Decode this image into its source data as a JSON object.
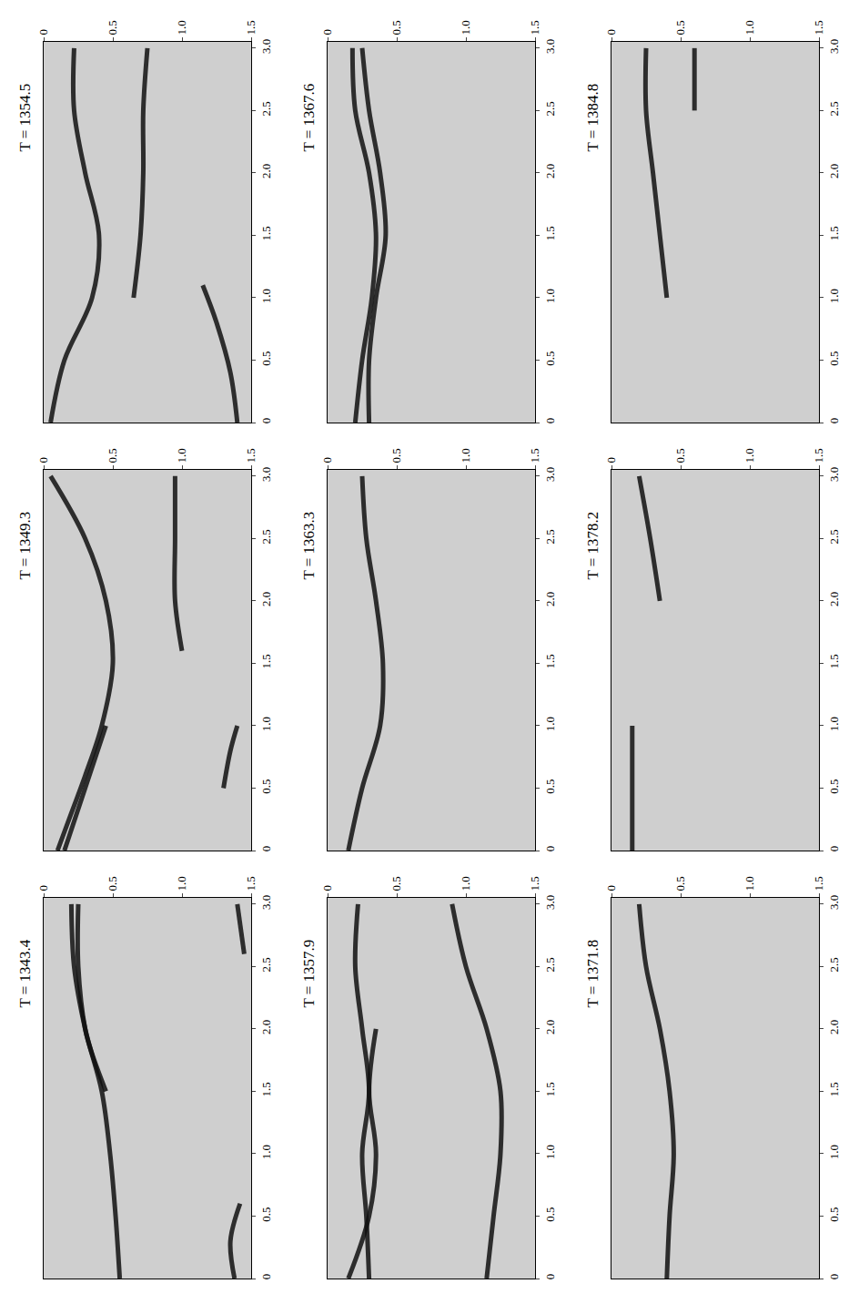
{
  "chart_data": [
    {
      "type": "line",
      "title": "T = 1354.5",
      "xlim": [
        0,
        3.05
      ],
      "ylim": [
        0,
        1.5
      ],
      "grid": false,
      "xticks": [
        0,
        0.5,
        {
          "value": 1,
          "label": "1.0"
        },
        1.5,
        {
          "value": 2,
          "label": "2.0"
        },
        2.5,
        {
          "value": 3,
          "label": "3.0"
        }
      ],
      "yticks": [
        0,
        0.5,
        {
          "value": 1,
          "label": "1.0"
        },
        1.5
      ],
      "series": [
        {
          "color": "#111111",
          "x": [
            0,
            0.5,
            1.0,
            1.5,
            2.0,
            2.5,
            3.0
          ],
          "values": [
            0.05,
            0.15,
            0.35,
            0.4,
            0.3,
            0.22,
            0.22
          ]
        },
        {
          "color": "#111111",
          "x": [
            1.0,
            1.5,
            2.0,
            2.5,
            3.0
          ],
          "values": [
            0.65,
            0.7,
            0.72,
            0.72,
            0.75
          ]
        },
        {
          "color": "#111111",
          "x": [
            0,
            0.4,
            0.8,
            1.1
          ],
          "values": [
            1.4,
            1.35,
            1.25,
            1.15
          ]
        }
      ]
    },
    {
      "type": "line",
      "title": "T = 1367.6",
      "xlim": [
        0,
        3.05
      ],
      "ylim": [
        0,
        1.5
      ],
      "grid": false,
      "xticks": [
        0,
        0.5,
        {
          "value": 1,
          "label": "1.0"
        },
        1.5,
        {
          "value": 2,
          "label": "2.0"
        },
        2.5,
        {
          "value": 3,
          "label": "3.0"
        }
      ],
      "yticks": [
        0,
        0.5,
        {
          "value": 1,
          "label": "1.0"
        },
        1.5
      ],
      "series": [
        {
          "color": "#111111",
          "x": [
            0,
            0.5,
            1.0,
            1.5,
            2.0,
            2.5,
            3.0
          ],
          "values": [
            0.2,
            0.25,
            0.32,
            0.35,
            0.3,
            0.2,
            0.18
          ]
        },
        {
          "color": "#111111",
          "x": [
            0,
            0.5,
            1.0,
            1.5,
            2.0,
            2.5,
            3.0
          ],
          "values": [
            0.3,
            0.3,
            0.35,
            0.42,
            0.38,
            0.3,
            0.25
          ]
        }
      ]
    },
    {
      "type": "line",
      "title": "T = 1384.8",
      "xlim": [
        0,
        3.05
      ],
      "ylim": [
        0,
        1.5
      ],
      "grid": false,
      "xticks": [
        0,
        0.5,
        {
          "value": 1,
          "label": "1.0"
        },
        1.5,
        {
          "value": 2,
          "label": "2.0"
        },
        2.5,
        {
          "value": 3,
          "label": "3.0"
        }
      ],
      "yticks": [
        0,
        0.5,
        {
          "value": 1,
          "label": "1.0"
        },
        1.5
      ],
      "series": [
        {
          "color": "#111111",
          "x": [
            1.0,
            1.5,
            2.0,
            2.5,
            3.0
          ],
          "values": [
            0.4,
            0.35,
            0.3,
            0.25,
            0.25
          ]
        },
        {
          "color": "#111111",
          "x": [
            2.5,
            3.0
          ],
          "values": [
            0.6,
            0.6
          ]
        }
      ]
    },
    {
      "type": "line",
      "title": "T = 1349.3",
      "xlim": [
        0,
        3.05
      ],
      "ylim": [
        0,
        1.5
      ],
      "grid": false,
      "xticks": [
        0,
        0.5,
        {
          "value": 1,
          "label": "1.0"
        },
        1.5,
        {
          "value": 2,
          "label": "2.0"
        },
        2.5,
        {
          "value": 3,
          "label": "3.0"
        }
      ],
      "yticks": [
        0,
        0.5,
        {
          "value": 1,
          "label": "1.0"
        },
        1.5
      ],
      "series": [
        {
          "color": "#111111",
          "x": [
            0,
            0.3,
            0.6,
            1.0,
            1.5,
            2.0,
            2.5,
            3.0
          ],
          "values": [
            0.1,
            0.2,
            0.3,
            0.42,
            0.5,
            0.45,
            0.3,
            0.05
          ]
        },
        {
          "color": "#111111",
          "x": [
            0,
            0.5,
            1.0
          ],
          "values": [
            0.15,
            0.3,
            0.45
          ]
        },
        {
          "color": "#111111",
          "x": [
            1.6,
            2.0,
            2.5,
            3.0
          ],
          "values": [
            1.0,
            0.95,
            0.95,
            0.95
          ]
        },
        {
          "color": "#111111",
          "x": [
            0.5,
            0.8,
            1.0
          ],
          "values": [
            1.3,
            1.35,
            1.4
          ]
        }
      ]
    },
    {
      "type": "line",
      "title": "T = 1363.3",
      "xlim": [
        0,
        3.05
      ],
      "ylim": [
        0,
        1.5
      ],
      "grid": false,
      "xticks": [
        0,
        0.5,
        {
          "value": 1,
          "label": "1.0"
        },
        1.5,
        {
          "value": 2,
          "label": "2.0"
        },
        2.5,
        {
          "value": 3,
          "label": "3.0"
        }
      ],
      "yticks": [
        0,
        0.5,
        {
          "value": 1,
          "label": "1.0"
        },
        1.5
      ],
      "series": [
        {
          "color": "#111111",
          "x": [
            0,
            0.5,
            1.0,
            1.5,
            2.0,
            2.5,
            3.0
          ],
          "values": [
            0.15,
            0.25,
            0.38,
            0.4,
            0.35,
            0.28,
            0.25
          ]
        }
      ]
    },
    {
      "type": "line",
      "title": "T = 1378.2",
      "xlim": [
        0,
        3.05
      ],
      "ylim": [
        0,
        1.5
      ],
      "grid": false,
      "xticks": [
        0,
        0.5,
        {
          "value": 1,
          "label": "1.0"
        },
        1.5,
        {
          "value": 2,
          "label": "2.0"
        },
        2.5,
        {
          "value": 3,
          "label": "3.0"
        }
      ],
      "yticks": [
        0,
        0.5,
        {
          "value": 1,
          "label": "1.0"
        },
        1.5
      ],
      "series": [
        {
          "color": "#111111",
          "x": [
            0,
            0.5,
            1.0
          ],
          "values": [
            0.15,
            0.15,
            0.15
          ]
        },
        {
          "color": "#111111",
          "x": [
            2.0,
            2.5,
            3.0
          ],
          "values": [
            0.35,
            0.28,
            0.2
          ]
        }
      ]
    },
    {
      "type": "line",
      "title": "T = 1343.4",
      "xlim": [
        0,
        3.05
      ],
      "ylim": [
        0,
        1.5
      ],
      "grid": false,
      "xticks": [
        0,
        0.5,
        {
          "value": 1,
          "label": "1.0"
        },
        1.5,
        {
          "value": 2,
          "label": "2.0"
        },
        2.5,
        {
          "value": 3,
          "label": "3.0"
        }
      ],
      "yticks": [
        0,
        0.5,
        {
          "value": 1,
          "label": "1.0"
        },
        1.5
      ],
      "series": [
        {
          "color": "#111111",
          "x": [
            0,
            0.5,
            1.0,
            1.5,
            2.0,
            2.5,
            3.0
          ],
          "values": [
            0.55,
            0.52,
            0.48,
            0.42,
            0.3,
            0.22,
            0.2
          ]
        },
        {
          "color": "#111111",
          "x": [
            1.5,
            1.8,
            2.0,
            2.5,
            3.0
          ],
          "values": [
            0.45,
            0.35,
            0.3,
            0.25,
            0.25
          ]
        },
        {
          "color": "#111111",
          "x": [
            0,
            0.3,
            0.6
          ],
          "values": [
            1.38,
            1.35,
            1.42
          ]
        },
        {
          "color": "#111111",
          "x": [
            2.6,
            3.0
          ],
          "values": [
            1.45,
            1.4
          ]
        }
      ]
    },
    {
      "type": "line",
      "title": "T = 1357.9",
      "xlim": [
        0,
        3.05
      ],
      "ylim": [
        0,
        1.5
      ],
      "grid": false,
      "xticks": [
        0,
        0.5,
        {
          "value": 1,
          "label": "1.0"
        },
        1.5,
        {
          "value": 2,
          "label": "2.0"
        },
        2.5,
        {
          "value": 3,
          "label": "3.0"
        }
      ],
      "yticks": [
        0,
        0.5,
        {
          "value": 1,
          "label": "1.0"
        },
        1.5
      ],
      "series": [
        {
          "color": "#111111",
          "x": [
            0,
            0.5,
            1.0,
            1.5,
            2.0,
            2.5,
            3.0
          ],
          "values": [
            0.3,
            0.28,
            0.25,
            0.3,
            0.25,
            0.2,
            0.22
          ]
        },
        {
          "color": "#111111",
          "x": [
            0,
            0.5,
            1.0,
            1.5,
            2.0
          ],
          "values": [
            0.15,
            0.3,
            0.35,
            0.3,
            0.35
          ]
        },
        {
          "color": "#111111",
          "x": [
            0,
            0.5,
            1.0,
            1.5,
            2.0,
            2.5,
            3.0
          ],
          "values": [
            1.15,
            1.2,
            1.25,
            1.25,
            1.15,
            1.0,
            0.9
          ]
        }
      ]
    },
    {
      "type": "line",
      "title": "T = 1371.8",
      "xlim": [
        0,
        3.05
      ],
      "ylim": [
        0,
        1.5
      ],
      "grid": false,
      "xticks": [
        0,
        0.5,
        {
          "value": 1,
          "label": "1.0"
        },
        1.5,
        {
          "value": 2,
          "label": "2.0"
        },
        2.5,
        {
          "value": 3,
          "label": "3.0"
        }
      ],
      "yticks": [
        0,
        0.5,
        {
          "value": 1,
          "label": "1.0"
        },
        1.5
      ],
      "series": [
        {
          "color": "#111111",
          "x": [
            0,
            0.5,
            1.0,
            1.5,
            2.0,
            2.5,
            3.0
          ],
          "values": [
            0.4,
            0.42,
            0.45,
            0.42,
            0.35,
            0.25,
            0.2
          ]
        }
      ]
    }
  ]
}
